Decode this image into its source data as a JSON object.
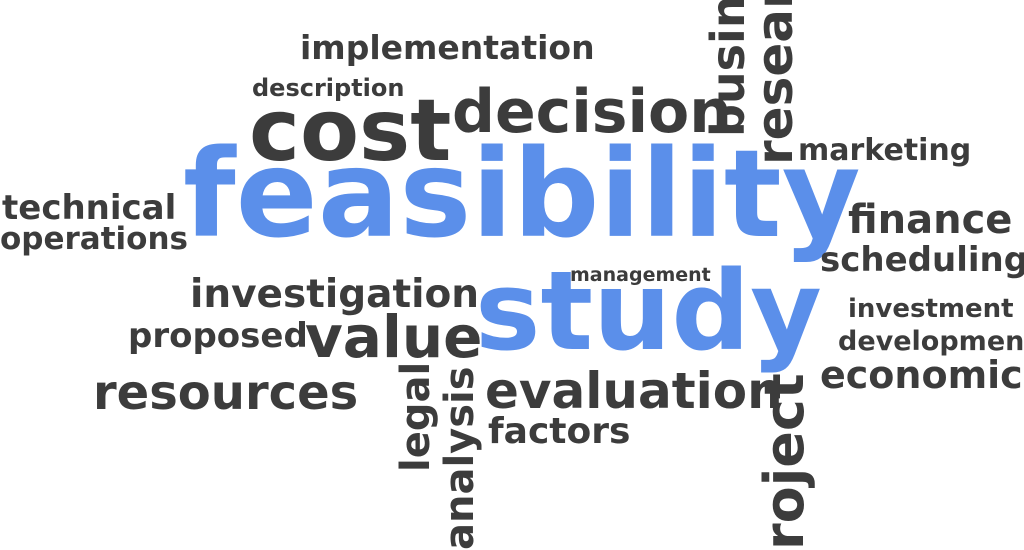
{
  "colors": {
    "primary": "#5b8fea",
    "secondary": "#3c3c3c",
    "background": "#ffffff"
  },
  "words": {
    "implementation": "implementation",
    "description": "description",
    "cost": "cost",
    "decision": "decision",
    "business": "busine",
    "research": "researc",
    "marketing": "marketing",
    "technical": "technical",
    "operations": "operations",
    "feasibility": "feasibility",
    "finance": "finance",
    "scheduling": "scheduling",
    "management": "management",
    "investigation": "investigation",
    "study": "study",
    "investment": "investment",
    "proposed": "proposed",
    "value": "value",
    "development": "development",
    "economic": "economic",
    "resources": "resources",
    "legal": "legal",
    "analysis": "analysis",
    "evaluation": "evaluation",
    "factors": "factors",
    "project": "roject"
  }
}
